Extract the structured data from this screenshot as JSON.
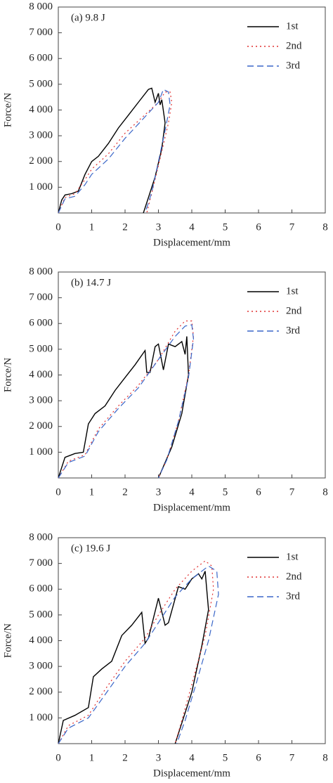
{
  "chart_data": [
    {
      "type": "line",
      "annotation": "(a) 9.8 J",
      "xlabel": "Displacement/mm",
      "ylabel": "Force/N",
      "xlim": [
        0,
        8
      ],
      "ylim": [
        0,
        8000
      ],
      "xticks": [
        0,
        1,
        2,
        3,
        4,
        5,
        6,
        7,
        8
      ],
      "yticks": [
        {
          "value": 1000,
          "label": "1 000"
        },
        {
          "value": 2000,
          "label": "2 000"
        },
        {
          "value": 3000,
          "label": "3 000"
        },
        {
          "value": 4000,
          "label": "4 000"
        },
        {
          "value": 5000,
          "label": "5 000"
        },
        {
          "value": 6000,
          "label": "6 000"
        },
        {
          "value": 7000,
          "label": "7 000"
        },
        {
          "value": 8000,
          "label": "8 000"
        }
      ],
      "legend": "upper right",
      "series": [
        {
          "name": "1st",
          "color": "#000000",
          "dash": "solid",
          "x": [
            0,
            0.1,
            0.2,
            0.4,
            0.6,
            0.8,
            1.0,
            1.2,
            1.5,
            1.8,
            2.1,
            2.4,
            2.7,
            2.8,
            2.9,
            3.0,
            3.05,
            3.1,
            3.2,
            3.1,
            2.9,
            2.7,
            2.55
          ],
          "values": [
            0,
            500,
            700,
            750,
            850,
            1500,
            2000,
            2200,
            2700,
            3300,
            3800,
            4300,
            4800,
            4850,
            4300,
            4650,
            4200,
            4400,
            3500,
            2500,
            1400,
            600,
            0
          ]
        },
        {
          "name": "2nd",
          "color": "#e03030",
          "dash": "dotted",
          "x": [
            0,
            0.2,
            0.5,
            0.8,
            1.0,
            1.5,
            2.0,
            2.5,
            3.0,
            3.2,
            3.35,
            3.4,
            3.3,
            3.1,
            2.9,
            2.65
          ],
          "values": [
            0,
            600,
            750,
            1300,
            1700,
            2300,
            3100,
            3700,
            4300,
            4700,
            4700,
            4300,
            3500,
            2400,
            1300,
            0
          ]
        },
        {
          "name": "3rd",
          "color": "#3a66c8",
          "dash": "dashed",
          "x": [
            0,
            0.2,
            0.5,
            0.8,
            1.0,
            1.5,
            2.0,
            2.5,
            3.0,
            3.15,
            3.3,
            3.35,
            3.2,
            3.0,
            2.8,
            2.6
          ],
          "values": [
            0,
            550,
            650,
            1100,
            1500,
            2100,
            2900,
            3600,
            4300,
            4800,
            4700,
            4200,
            3200,
            2000,
            800,
            0
          ]
        }
      ]
    },
    {
      "type": "line",
      "annotation": "(b) 14.7 J",
      "xlabel": "Displacement/mm",
      "ylabel": "Force/N",
      "xlim": [
        0,
        8
      ],
      "ylim": [
        0,
        8000
      ],
      "xticks": [
        0,
        1,
        2,
        3,
        4,
        5,
        6,
        7,
        8
      ],
      "yticks": [
        {
          "value": 1000,
          "label": "1 000"
        },
        {
          "value": 2000,
          "label": "2 000"
        },
        {
          "value": 3000,
          "label": "3 000"
        },
        {
          "value": 4000,
          "label": "4 000"
        },
        {
          "value": 5000,
          "label": "5 000"
        },
        {
          "value": 6000,
          "label": "6 000"
        },
        {
          "value": 7000,
          "label": "7 000"
        },
        {
          "value": 8000,
          "label": "8 000"
        }
      ],
      "legend": "upper right",
      "series": [
        {
          "name": "1st",
          "color": "#000000",
          "dash": "solid",
          "x": [
            0,
            0.2,
            0.5,
            0.75,
            0.9,
            1.1,
            1.4,
            1.7,
            2.0,
            2.3,
            2.6,
            2.65,
            2.75,
            2.9,
            3.0,
            3.15,
            3.3,
            3.5,
            3.7,
            3.8,
            3.85,
            3.9,
            3.7,
            3.4,
            3.1,
            3.0
          ],
          "values": [
            0,
            800,
            950,
            1000,
            2100,
            2500,
            2800,
            3400,
            3900,
            4400,
            4950,
            4100,
            4100,
            5100,
            5200,
            4200,
            5200,
            5100,
            5300,
            4800,
            5500,
            4000,
            2500,
            1200,
            300,
            0
          ]
        },
        {
          "name": "2nd",
          "color": "#e03030",
          "dash": "dotted",
          "x": [
            0,
            0.3,
            0.8,
            1.2,
            1.8,
            2.4,
            3.0,
            3.5,
            3.8,
            4.0,
            4.05,
            3.9,
            3.6,
            3.25,
            3.0
          ],
          "values": [
            0,
            650,
            900,
            1900,
            2800,
            3600,
            4600,
            5700,
            6100,
            6100,
            5500,
            4000,
            2200,
            700,
            0
          ]
        },
        {
          "name": "3rd",
          "color": "#3a66c8",
          "dash": "dashed",
          "x": [
            0,
            0.3,
            0.8,
            1.2,
            1.8,
            2.4,
            3.0,
            3.5,
            3.8,
            4.0,
            4.05,
            3.9,
            3.6,
            3.25,
            3.0
          ],
          "values": [
            0,
            600,
            850,
            1800,
            2700,
            3500,
            4600,
            5500,
            5900,
            5950,
            5400,
            3900,
            2200,
            700,
            0
          ]
        }
      ]
    },
    {
      "type": "line",
      "annotation": "(c) 19.6 J",
      "xlabel": "Displacement/mm",
      "ylabel": "Force/N",
      "xlim": [
        0,
        8
      ],
      "ylim": [
        0,
        8000
      ],
      "xticks": [
        0,
        1,
        2,
        3,
        4,
        5,
        6,
        7,
        8
      ],
      "yticks": [
        {
          "value": 1000,
          "label": "1 000"
        },
        {
          "value": 2000,
          "label": "2 000"
        },
        {
          "value": 3000,
          "label": "3 000"
        },
        {
          "value": 4000,
          "label": "4 000"
        },
        {
          "value": 5000,
          "label": "5 000"
        },
        {
          "value": 6000,
          "label": "6 000"
        },
        {
          "value": 7000,
          "label": "7 000"
        },
        {
          "value": 8000,
          "label": "8 000"
        }
      ],
      "legend": "upper right",
      "series": [
        {
          "name": "1st",
          "color": "#000000",
          "dash": "solid",
          "x": [
            0,
            0.15,
            0.5,
            0.9,
            1.05,
            1.3,
            1.6,
            1.9,
            2.2,
            2.5,
            2.6,
            2.7,
            3.0,
            3.2,
            3.3,
            3.6,
            3.8,
            4.0,
            4.2,
            4.3,
            4.4,
            4.5,
            4.3,
            4.0,
            3.7,
            3.5
          ],
          "values": [
            0,
            900,
            1100,
            1400,
            2600,
            2900,
            3200,
            4200,
            4600,
            5100,
            3900,
            4100,
            5650,
            4600,
            4700,
            6100,
            6000,
            6400,
            6600,
            6400,
            6700,
            5200,
            3800,
            2000,
            800,
            0
          ]
        },
        {
          "name": "2nd",
          "color": "#e03030",
          "dash": "dotted",
          "x": [
            0,
            0.3,
            0.9,
            1.4,
            2.0,
            2.6,
            3.0,
            3.5,
            4.0,
            4.4,
            4.6,
            4.65,
            4.4,
            4.0,
            3.7,
            3.5
          ],
          "values": [
            0,
            700,
            1100,
            2100,
            3200,
            4100,
            5000,
            6000,
            6700,
            7100,
            6900,
            6000,
            4200,
            2300,
            900,
            0
          ]
        },
        {
          "name": "3rd",
          "color": "#3a66c8",
          "dash": "dashed",
          "x": [
            0,
            0.3,
            0.9,
            1.4,
            2.0,
            2.6,
            3.0,
            3.5,
            4.0,
            4.5,
            4.75,
            4.8,
            4.5,
            4.1,
            3.8,
            3.55
          ],
          "values": [
            0,
            600,
            1000,
            1900,
            3000,
            3900,
            4700,
            5700,
            6400,
            6900,
            6700,
            5800,
            4000,
            2200,
            900,
            0
          ]
        }
      ]
    }
  ]
}
